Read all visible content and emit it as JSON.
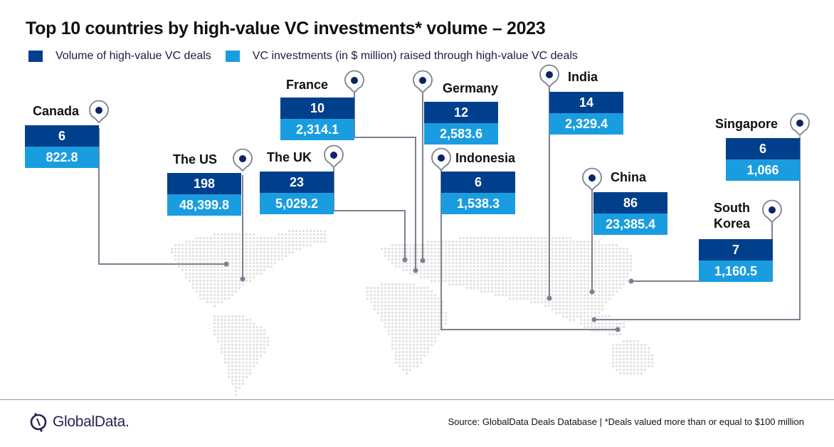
{
  "title": "Top 10 countries by high-value VC investments* volume –  2023",
  "legend": [
    {
      "label": "Volume of high-value VC deals",
      "color": "#003f8c"
    },
    {
      "label": "VC investments (in $ million) raised through high-value VC deals",
      "color": "#1a9de0"
    }
  ],
  "chart_data": {
    "type": "table",
    "title": "Top 10 countries by high-value VC investments* volume –  2023",
    "columns": [
      "Country",
      "Volume of high-value VC deals",
      "VC investments (in $ million) raised through high-value VC deals"
    ],
    "rows": [
      {
        "country": "Canada",
        "volume": 6,
        "volume_label": "6",
        "value": 822.8,
        "value_label": "822.8"
      },
      {
        "country": "The US",
        "volume": 198,
        "volume_label": "198",
        "value": 48399.8,
        "value_label": "48,399.8"
      },
      {
        "country": "The UK",
        "volume": 23,
        "volume_label": "23",
        "value": 5029.2,
        "value_label": "5,029.2"
      },
      {
        "country": "France",
        "volume": 10,
        "volume_label": "10",
        "value": 2314.1,
        "value_label": "2,314.1"
      },
      {
        "country": "Germany",
        "volume": 12,
        "volume_label": "12",
        "value": 2583.6,
        "value_label": "2,583.6"
      },
      {
        "country": "Indonesia",
        "volume": 6,
        "volume_label": "6",
        "value": 1538.3,
        "value_label": "1,538.3"
      },
      {
        "country": "India",
        "volume": 14,
        "volume_label": "14",
        "value": 2329.4,
        "value_label": "2,329.4"
      },
      {
        "country": "China",
        "volume": 86,
        "volume_label": "86",
        "value": 23385.4,
        "value_label": "23,385.4"
      },
      {
        "country": "South Korea",
        "volume": 7,
        "volume_label": "7",
        "value": 1160.5,
        "value_label": "1,160.5"
      },
      {
        "country": "Singapore",
        "volume": 6,
        "volume_label": "6",
        "value": 1066,
        "value_label": "1,066"
      }
    ]
  },
  "footer": {
    "logo_text": "GlobalData.",
    "source": "Source: GlobalData Deals Database | *Deals valued more than or equal to $100 million"
  },
  "colors": {
    "dark_blue": "#003f8c",
    "light_blue": "#1a9de0",
    "line": "#7d8091",
    "pin_dot": "#0b2466"
  }
}
